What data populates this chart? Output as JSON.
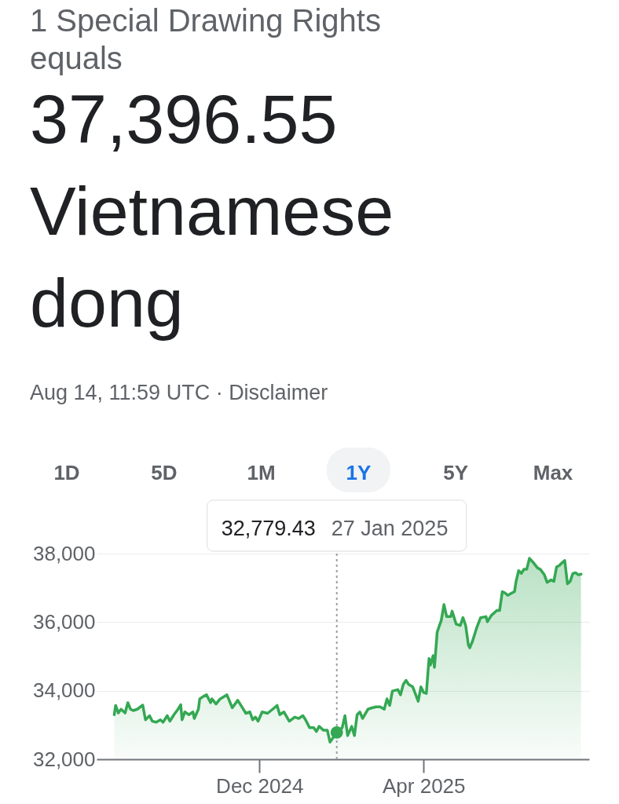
{
  "chart_data": {
    "type": "area",
    "title": "1 Special Drawing Rights equals",
    "subtitle": "37,396.55 Vietnamese dong",
    "annotations": [
      "Aug 14, 11:59 UTC · Disclaimer",
      "1D",
      "5D",
      "1M",
      "1Y",
      "5Y",
      "Max",
      "32,779.43",
      "27 Jan 2025"
    ],
    "x": [
      "2024-08-16",
      "2024-08-17",
      "2024-08-19",
      "2024-08-21",
      "2024-08-24",
      "2024-08-26",
      "2024-08-28",
      "2024-08-30",
      "2024-09-02",
      "2024-09-06",
      "2024-09-08",
      "2024-09-11",
      "2024-09-13",
      "2024-09-16",
      "2024-09-19",
      "2024-09-21",
      "2024-09-24",
      "2024-09-26",
      "2024-09-29",
      "2024-10-02",
      "2024-10-04",
      "2024-10-05",
      "2024-10-07",
      "2024-10-10",
      "2024-10-13",
      "2024-10-14",
      "2024-10-17",
      "2024-10-18",
      "2024-10-21",
      "2024-10-23",
      "2024-10-26",
      "2024-10-27",
      "2024-10-30",
      "2024-11-02",
      "2024-11-07",
      "2024-11-11",
      "2024-11-15",
      "2024-11-18",
      "2024-11-21",
      "2024-11-24",
      "2024-11-26",
      "2024-11-28",
      "2024-11-30",
      "2024-12-03",
      "2024-12-07",
      "2024-12-12",
      "2024-12-14",
      "2024-12-16",
      "2024-12-19",
      "2024-12-23",
      "2024-12-27",
      "2024-12-30",
      "2025-01-02",
      "2025-01-04",
      "2025-01-07",
      "2025-01-10",
      "2025-01-12",
      "2025-01-14",
      "2025-01-17",
      "2025-01-20",
      "2025-01-22",
      "2025-01-26",
      "2025-01-27",
      "2025-01-31",
      "2025-02-02",
      "2025-02-04",
      "2025-02-07",
      "2025-02-09",
      "2025-02-11",
      "2025-02-13",
      "2025-02-15",
      "2025-02-19",
      "2025-02-22",
      "2025-02-25",
      "2025-02-28",
      "2025-03-03",
      "2025-03-05",
      "2025-03-07",
      "2025-03-09",
      "2025-03-13",
      "2025-03-15",
      "2025-03-17",
      "2025-03-19",
      "2025-03-21",
      "2025-03-24",
      "2025-03-28",
      "2025-03-30",
      "2025-04-01",
      "2025-04-03",
      "2025-04-05",
      "2025-04-06",
      "2025-04-08",
      "2025-04-09",
      "2025-04-11",
      "2025-04-14",
      "2025-04-16",
      "2025-04-18",
      "2025-04-21",
      "2025-04-22",
      "2025-04-25",
      "2025-04-28",
      "2025-04-30",
      "2025-05-02",
      "2025-05-04",
      "2025-05-05",
      "2025-05-07",
      "2025-05-10",
      "2025-05-13",
      "2025-05-17",
      "2025-05-18",
      "2025-05-21",
      "2025-05-25",
      "2025-05-27",
      "2025-05-29",
      "2025-05-31",
      "2025-06-02",
      "2025-06-05",
      "2025-06-07",
      "2025-06-08",
      "2025-06-10",
      "2025-06-12",
      "2025-06-14",
      "2025-06-16",
      "2025-06-18",
      "2025-06-21",
      "2025-06-24",
      "2025-06-26",
      "2025-06-29",
      "2025-07-01",
      "2025-07-04",
      "2025-07-06",
      "2025-07-08",
      "2025-07-10",
      "2025-07-12",
      "2025-07-14",
      "2025-07-16",
      "2025-07-18",
      "2025-07-20",
      "2025-07-22",
      "2025-07-24",
      "2025-07-26"
    ],
    "series": [
      {
        "color": "#34a853",
        "values": [
          33300,
          33570,
          33350,
          33460,
          33350,
          33650,
          33460,
          33420,
          33460,
          33580,
          33150,
          33270,
          33110,
          33080,
          33150,
          33080,
          33270,
          33110,
          33300,
          33460,
          33590,
          33150,
          33380,
          33300,
          33380,
          33190,
          33460,
          33760,
          33840,
          33880,
          33650,
          33760,
          33610,
          33760,
          33880,
          33500,
          33720,
          33530,
          33340,
          33380,
          33150,
          33230,
          33110,
          33380,
          33340,
          33500,
          33570,
          33300,
          33380,
          33110,
          33230,
          33190,
          33270,
          33150,
          32920,
          32920,
          32810,
          32960,
          32850,
          32850,
          32500,
          32730,
          32780,
          32920,
          33270,
          32690,
          32960,
          32690,
          33300,
          33380,
          33190,
          33460,
          33500,
          33530,
          33530,
          33460,
          33760,
          33570,
          33990,
          34030,
          33880,
          34180,
          34300,
          34180,
          34110,
          33690,
          34110,
          33950,
          33920,
          34940,
          34750,
          35020,
          34680,
          35710,
          36050,
          36510,
          36160,
          36160,
          36320,
          35940,
          35900,
          36130,
          35900,
          35330,
          35250,
          35440,
          35820,
          36130,
          36160,
          36010,
          36200,
          36340,
          36340,
          36890,
          36850,
          36780,
          36850,
          36890,
          37160,
          37500,
          37420,
          37540,
          37540,
          37860,
          37730,
          37580,
          37540,
          37380,
          37160,
          37230,
          37190,
          37610,
          37650,
          37730,
          37800,
          37120,
          37190,
          37420,
          37440,
          37380,
          37400
        ]
      },
      {
        "type": "scatter",
        "color": "#34a853",
        "x": [
          "2025-01-27"
        ],
        "values": [
          32779.43
        ]
      }
    ],
    "xlim": [
      "2024-08-03",
      "2025-08-01"
    ],
    "xticks": [
      {
        "value": "2024-12-01",
        "label": "Dec 2024"
      },
      {
        "value": "2025-04-01",
        "label": "Apr 2025"
      }
    ],
    "ylim": [
      32000,
      38000
    ],
    "yticks": [
      {
        "value": 32000,
        "label": "32,000"
      },
      {
        "value": 34000,
        "label": "34,000"
      },
      {
        "value": 36000,
        "label": "36,000"
      },
      {
        "value": 38000,
        "label": "38,000"
      }
    ],
    "grid": "y",
    "ref_lines": [
      {
        "axis": "x",
        "value": "2025-01-27",
        "color": "#9aa0a6",
        "line_style": "dotted"
      }
    ]
  }
}
